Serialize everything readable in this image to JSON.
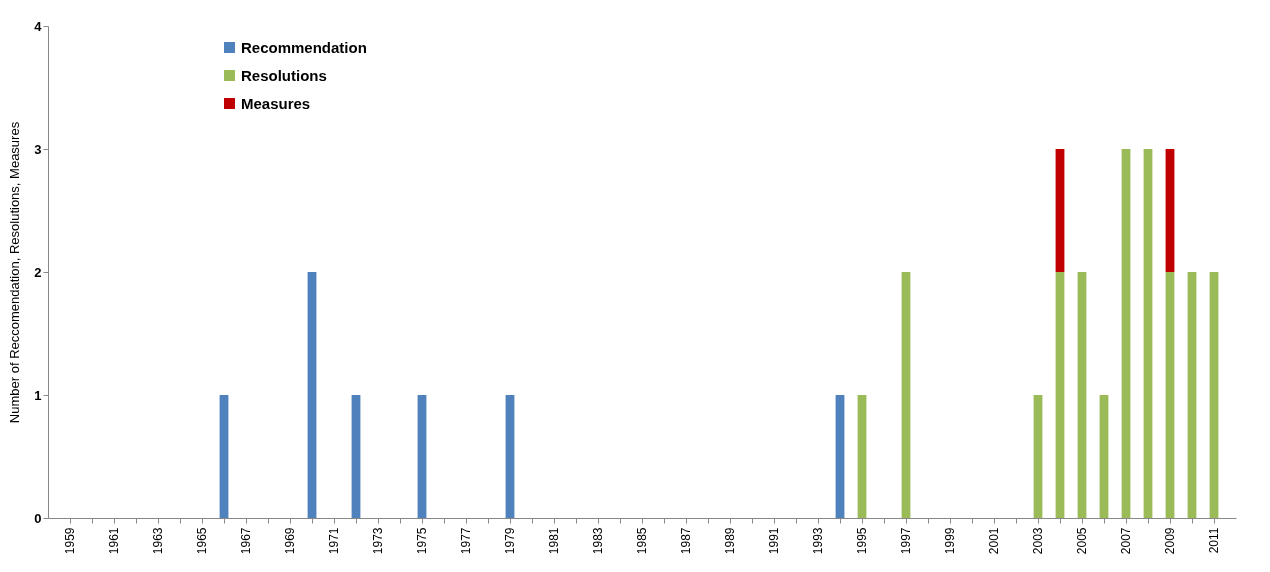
{
  "chart_data": {
    "type": "bar",
    "stacked": true,
    "ylabel": "Number of Reccomendation, Resolutions, Measures",
    "categories": [
      "1959",
      null,
      "1961",
      null,
      "1963",
      null,
      "1965",
      null,
      "1967",
      null,
      "1969",
      null,
      "1971",
      null,
      "1973",
      null,
      "1975",
      null,
      "1977",
      null,
      "1979",
      null,
      "1981",
      null,
      "1983",
      null,
      "1985",
      null,
      "1987",
      null,
      "1989",
      null,
      "1991",
      null,
      "1993",
      null,
      "1995",
      null,
      "1997",
      null,
      "1999",
      null,
      "2001",
      null,
      "2003",
      null,
      "2005",
      null,
      "2007",
      null,
      "2009",
      null,
      "2011"
    ],
    "series": [
      {
        "name": "Recommendation",
        "color": "#4f81bd",
        "values": [
          null,
          null,
          null,
          null,
          null,
          null,
          null,
          1,
          null,
          null,
          null,
          2,
          null,
          1,
          null,
          null,
          1,
          null,
          null,
          null,
          1,
          null,
          null,
          null,
          null,
          null,
          null,
          null,
          null,
          null,
          null,
          null,
          null,
          null,
          null,
          1,
          null,
          null,
          null,
          null,
          null,
          null,
          null,
          null,
          null,
          null,
          null,
          null,
          null,
          null,
          null,
          null,
          null
        ]
      },
      {
        "name": "Resolutions",
        "color": "#9bbb59",
        "values": [
          null,
          null,
          null,
          null,
          null,
          null,
          null,
          null,
          null,
          null,
          null,
          null,
          null,
          null,
          null,
          null,
          null,
          null,
          null,
          null,
          null,
          null,
          null,
          null,
          null,
          null,
          null,
          null,
          null,
          null,
          null,
          null,
          null,
          null,
          null,
          null,
          1,
          null,
          2,
          null,
          null,
          null,
          null,
          null,
          1,
          2,
          2,
          1,
          3,
          3,
          2,
          2,
          2
        ]
      },
      {
        "name": "Measures",
        "color": "#c00000",
        "values": [
          null,
          null,
          null,
          null,
          null,
          null,
          null,
          null,
          null,
          null,
          null,
          null,
          null,
          null,
          null,
          null,
          null,
          null,
          null,
          null,
          null,
          null,
          null,
          null,
          null,
          null,
          null,
          null,
          null,
          null,
          null,
          null,
          null,
          null,
          null,
          null,
          null,
          null,
          null,
          null,
          null,
          null,
          null,
          null,
          null,
          1,
          null,
          null,
          null,
          null,
          1,
          null,
          null
        ]
      }
    ],
    "ylim": [
      0,
      4
    ],
    "yticks": [
      0,
      1,
      2,
      3,
      4
    ],
    "legend": "top left"
  }
}
